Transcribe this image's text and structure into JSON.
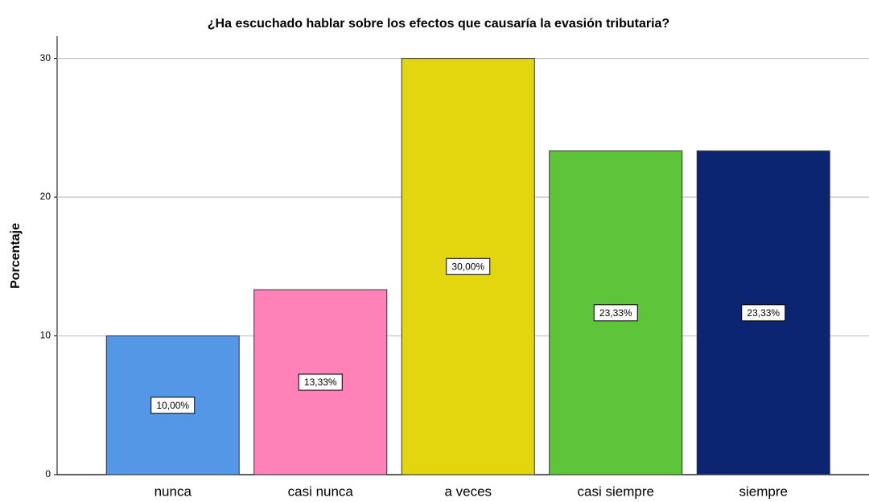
{
  "chart_data": {
    "type": "bar",
    "title": "¿Ha escuchado hablar sobre los efectos que causaría la evasión tributaria?",
    "y_label": "Porcentaje",
    "categories": [
      "nunca",
      "casi nunca",
      "a veces",
      "casi siempre",
      "siempre"
    ],
    "values": [
      10,
      13.33,
      30,
      23.33,
      23.33
    ],
    "value_labels": [
      "10,00%",
      "13,33%",
      "30,00%",
      "23,33%",
      "23,33%"
    ],
    "colors": [
      "#5597e7",
      "#fe82b8",
      "#e2d60e",
      "#5ec43a",
      "#0b2570"
    ],
    "ylim": [
      0,
      31.6
    ],
    "yticks": [
      0,
      10,
      20,
      30
    ],
    "grid": true
  }
}
